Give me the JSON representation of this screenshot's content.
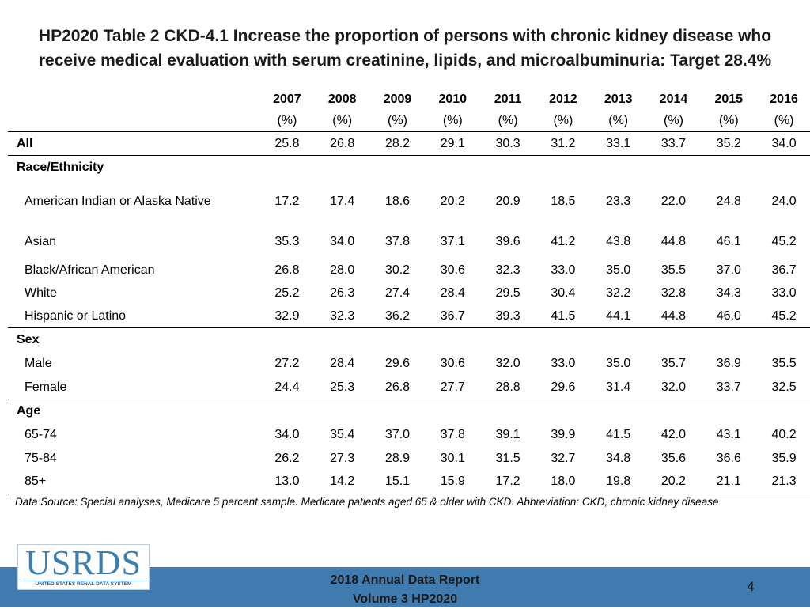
{
  "title": {
    "line1": "HP2020 Table 2 CKD-4.1 Increase the proportion of persons with chronic kidney disease who",
    "line2": "receive medical evaluation with serum creatinine, lipids, and microalbuminuria: Target 28.4%"
  },
  "table": {
    "years": [
      "2007",
      "2008",
      "2009",
      "2010",
      "2011",
      "2012",
      "2013",
      "2014",
      "2015",
      "2016"
    ],
    "unit": "(%)",
    "rows": [
      {
        "label": "All",
        "values": [
          "25.8",
          "26.8",
          "28.2",
          "29.1",
          "30.3",
          "31.2",
          "33.1",
          "33.7",
          "35.2",
          "34.0"
        ]
      },
      {
        "label": "Race/Ethnicity"
      },
      {
        "label": "American Indian or Alaska Native",
        "values": [
          "17.2",
          "17.4",
          "18.6",
          "20.2",
          "20.9",
          "18.5",
          "23.3",
          "22.0",
          "24.8",
          "24.0"
        ]
      },
      {
        "label": "Asian",
        "values": [
          "35.3",
          "34.0",
          "37.8",
          "37.1",
          "39.6",
          "41.2",
          "43.8",
          "44.8",
          "46.1",
          "45.2"
        ]
      },
      {
        "label": "Black/African American",
        "values": [
          "26.8",
          "28.0",
          "30.2",
          "30.6",
          "32.3",
          "33.0",
          "35.0",
          "35.5",
          "37.0",
          "36.7"
        ]
      },
      {
        "label": "White",
        "values": [
          "25.2",
          "26.3",
          "27.4",
          "28.4",
          "29.5",
          "30.4",
          "32.2",
          "32.8",
          "34.3",
          "33.0"
        ]
      },
      {
        "label": "Hispanic or Latino",
        "values": [
          "32.9",
          "32.3",
          "36.2",
          "36.7",
          "39.3",
          "41.5",
          "44.1",
          "44.8",
          "46.0",
          "45.2"
        ]
      },
      {
        "label": "Sex"
      },
      {
        "label": "Male",
        "values": [
          "27.2",
          "28.4",
          "29.6",
          "30.6",
          "32.0",
          "33.0",
          "35.0",
          "35.7",
          "36.9",
          "35.5"
        ]
      },
      {
        "label": "Female",
        "values": [
          "24.4",
          "25.3",
          "26.8",
          "27.7",
          "28.8",
          "29.6",
          "31.4",
          "32.0",
          "33.7",
          "32.5"
        ]
      },
      {
        "label": "Age"
      },
      {
        "label": "65-74",
        "values": [
          "34.0",
          "35.4",
          "37.0",
          "37.8",
          "39.1",
          "39.9",
          "41.5",
          "42.0",
          "43.1",
          "40.2"
        ]
      },
      {
        "label": "75-84",
        "values": [
          "26.2",
          "27.3",
          "28.9",
          "30.1",
          "31.5",
          "32.7",
          "34.8",
          "35.6",
          "36.6",
          "35.9"
        ]
      },
      {
        "label": "85+",
        "values": [
          "13.0",
          "14.2",
          "15.1",
          "15.9",
          "17.2",
          "18.0",
          "19.8",
          "20.2",
          "21.1",
          "21.3"
        ]
      }
    ]
  },
  "footnote": "Data Source: Special analyses, Medicare 5 percent sample. Medicare patients aged 65 & older with CKD. Abbreviation: CKD, chronic kidney disease",
  "logo": {
    "word": "USRDS",
    "subtitle": "UNITED STATES RENAL DATA SYSTEM"
  },
  "footer": {
    "line1": "2018 Annual Data Report",
    "line2": "Volume 3 HP2020",
    "page": "4"
  },
  "colors": {
    "footer_bar": "#3f7bae",
    "logo_text": "#3a7fb0"
  }
}
